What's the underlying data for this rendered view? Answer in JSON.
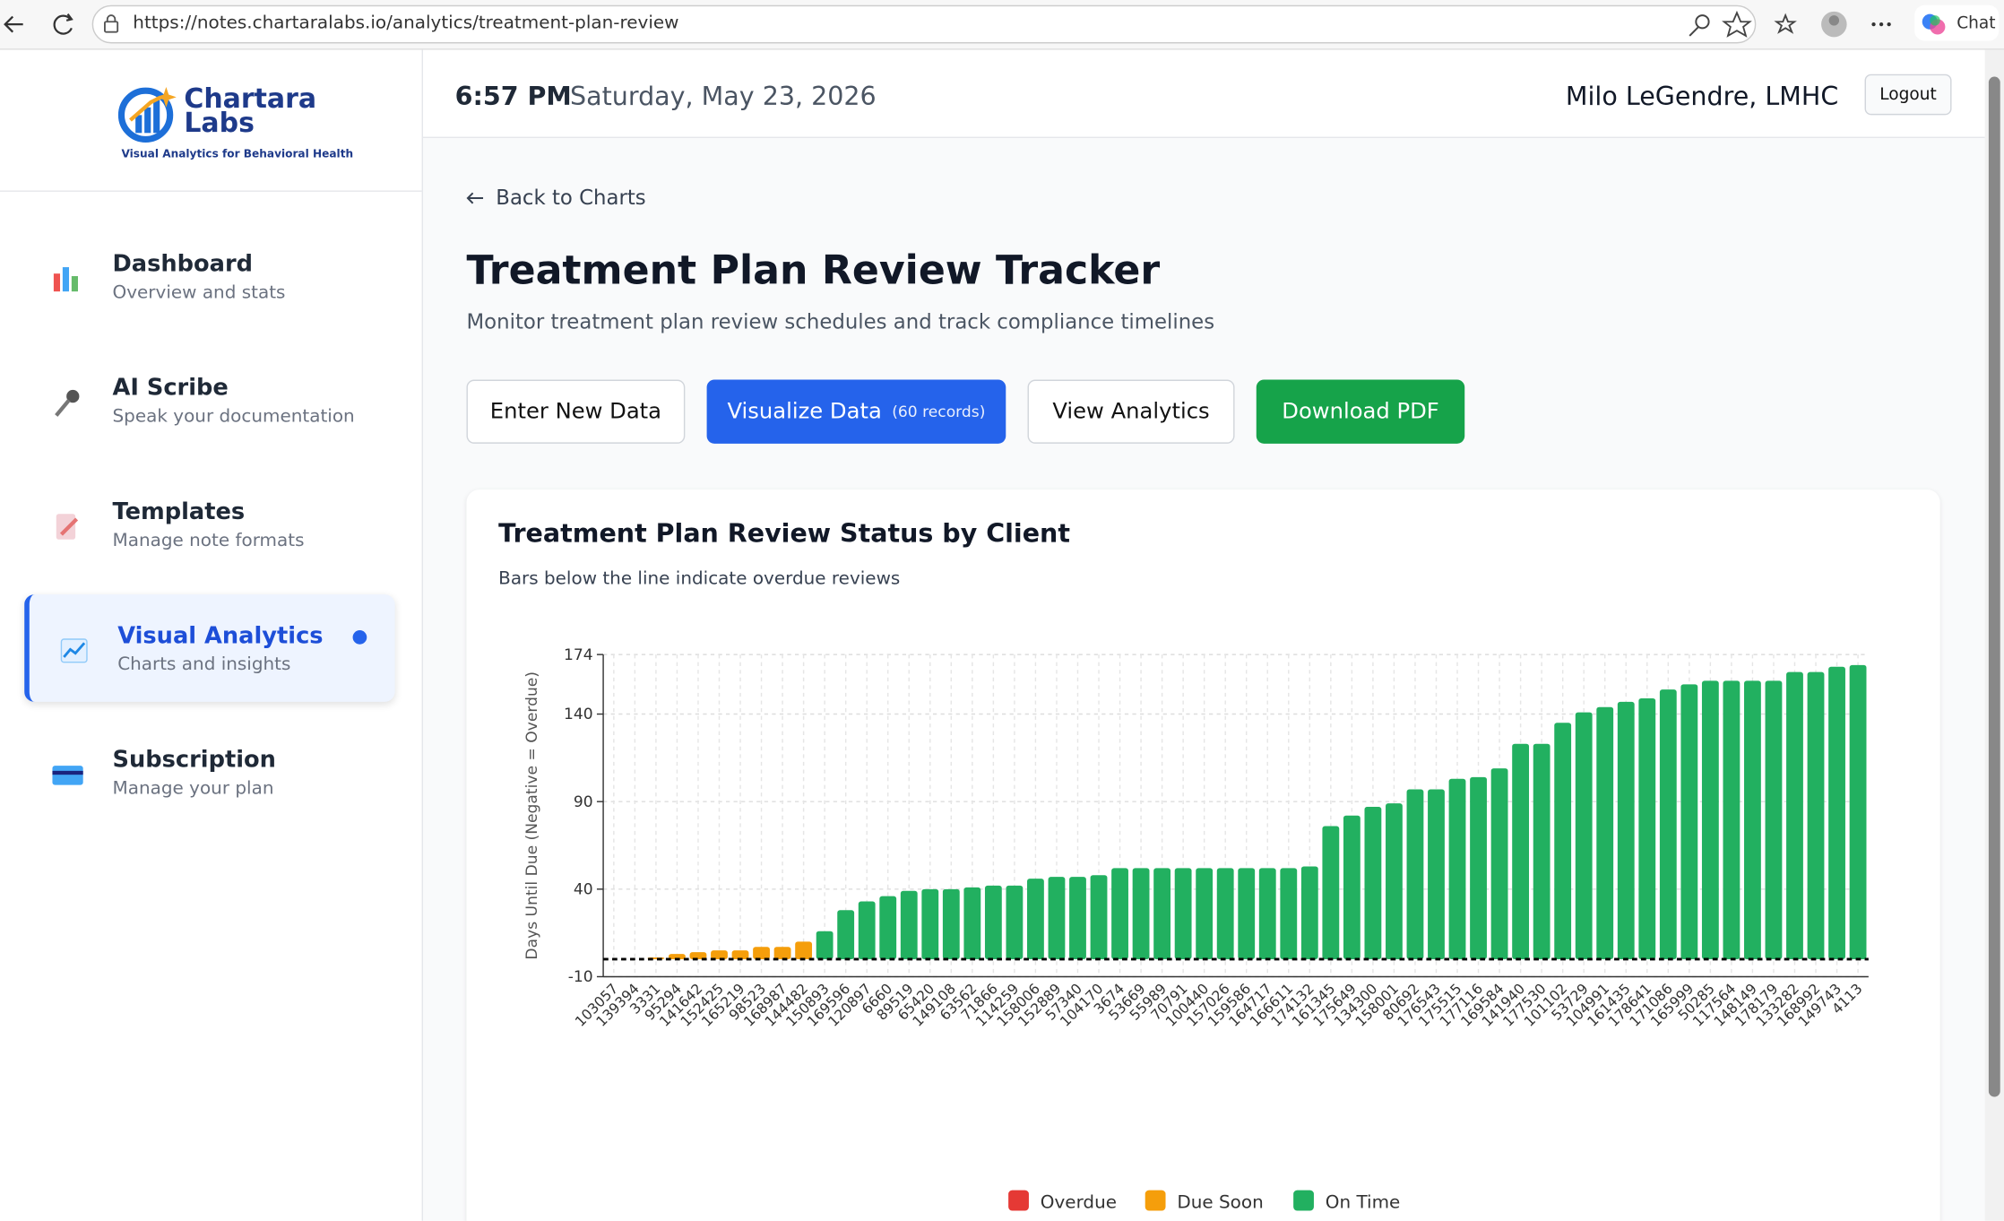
{
  "browser": {
    "url": "https://notes.chartaralabs.io/analytics/treatment-plan-review",
    "chat": "Chat"
  },
  "logo": {
    "name_line1": "Chartara",
    "name_line2": "Labs",
    "tagline": "Visual Analytics for Behavioral Health"
  },
  "nav": [
    {
      "title": "Dashboard",
      "subtitle": "Overview and stats"
    },
    {
      "title": "AI Scribe",
      "subtitle": "Speak your documentation"
    },
    {
      "title": "Templates",
      "subtitle": "Manage note formats"
    },
    {
      "title": "Visual Analytics",
      "subtitle": "Charts and insights"
    },
    {
      "title": "Subscription",
      "subtitle": "Manage your plan"
    }
  ],
  "header": {
    "time": "6:57 PM",
    "date": "Saturday, May 23, 2026",
    "user": "Milo LeGendre, LMHC",
    "logout": "Logout"
  },
  "page": {
    "back": "Back to Charts",
    "title": "Treatment Plan Review Tracker",
    "subtitle": "Monitor treatment plan review schedules and track compliance timelines",
    "buttons": {
      "enter": "Enter New Data",
      "visualize": "Visualize Data",
      "records": "(60 records)",
      "analytics": "View Analytics",
      "pdf": "Download PDF"
    }
  },
  "chart_data": {
    "type": "bar",
    "title": "Treatment Plan Review Status by Client",
    "subtitle": "Bars below the line indicate overdue reviews",
    "y_label": "Days Until Due (Negative = Overdue)",
    "categories": [
      "103057",
      "139394",
      "3331",
      "95294",
      "141642",
      "152425",
      "165219",
      "98523",
      "168987",
      "144482",
      "150893",
      "169596",
      "120897",
      "6660",
      "89519",
      "65420",
      "149108",
      "63562",
      "71866",
      "114259",
      "158006",
      "152889",
      "57340",
      "104170",
      "3674",
      "53669",
      "55989",
      "70791",
      "100440",
      "157026",
      "159586",
      "164717",
      "166611",
      "174132",
      "161345",
      "175649",
      "134300",
      "158001",
      "80692",
      "176543",
      "175515",
      "177116",
      "169584",
      "141940",
      "177530",
      "101102",
      "53729",
      "104991",
      "161435",
      "178641",
      "171086",
      "165999",
      "50285",
      "117564",
      "148149",
      "178179",
      "133282",
      "168992",
      "149743",
      "4113"
    ],
    "values": [
      0,
      0,
      1,
      3,
      4,
      5,
      5,
      7,
      7,
      10,
      16,
      28,
      33,
      36,
      39,
      40,
      40,
      41,
      42,
      42,
      46,
      47,
      47,
      48,
      52,
      52,
      52,
      52,
      52,
      52,
      52,
      52,
      52,
      53,
      76,
      82,
      87,
      89,
      97,
      97,
      103,
      104,
      109,
      123,
      123,
      135,
      141,
      144,
      147,
      149,
      154,
      157,
      159,
      159,
      159,
      159,
      164,
      164,
      167,
      168
    ],
    "colors": [
      "#f59e0b",
      "#f59e0b",
      "#f59e0b",
      "#f59e0b",
      "#f59e0b",
      "#f59e0b",
      "#f59e0b",
      "#f59e0b",
      "#f59e0b",
      "#f59e0b",
      "#22b060",
      "#22b060",
      "#22b060",
      "#22b060",
      "#22b060",
      "#22b060",
      "#22b060",
      "#22b060",
      "#22b060",
      "#22b060",
      "#22b060",
      "#22b060",
      "#22b060",
      "#22b060",
      "#22b060",
      "#22b060",
      "#22b060",
      "#22b060",
      "#22b060",
      "#22b060",
      "#22b060",
      "#22b060",
      "#22b060",
      "#22b060",
      "#22b060",
      "#22b060",
      "#22b060",
      "#22b060",
      "#22b060",
      "#22b060",
      "#22b060",
      "#22b060",
      "#22b060",
      "#22b060",
      "#22b060",
      "#22b060",
      "#22b060",
      "#22b060",
      "#22b060",
      "#22b060",
      "#22b060",
      "#22b060",
      "#22b060",
      "#22b060",
      "#22b060",
      "#22b060",
      "#22b060",
      "#22b060",
      "#22b060",
      "#22b060"
    ],
    "legend": [
      {
        "name": "Overdue",
        "color": "#e53935"
      },
      {
        "name": "Due Soon",
        "color": "#f59e0b"
      },
      {
        "name": "On Time",
        "color": "#22b060"
      }
    ],
    "reference_line": 0,
    "ylim": [
      -10,
      174
    ],
    "yticks": [
      -10,
      40,
      90,
      140,
      174
    ],
    "grid": true
  }
}
